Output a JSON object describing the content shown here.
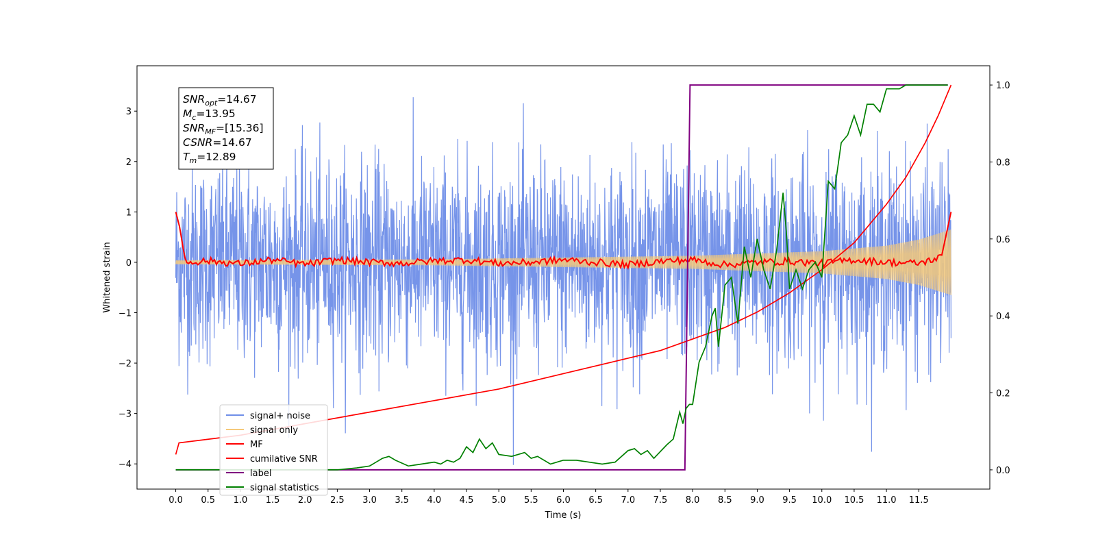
{
  "chart_data": {
    "type": "line",
    "xlabel": "Time (s)",
    "ylabel": "Whitened strain",
    "xlim": [
      -0.6,
      12.6
    ],
    "ylim": [
      -4.5,
      3.9
    ],
    "y2lim": [
      -0.05,
      1.05
    ],
    "x_ticks": [
      0.0,
      0.5,
      1.0,
      1.5,
      2.0,
      2.5,
      3.0,
      3.5,
      4.0,
      4.5,
      5.0,
      5.5,
      6.0,
      6.5,
      7.0,
      7.5,
      8.0,
      8.5,
      9.0,
      9.5,
      10.0,
      10.5,
      11.0,
      11.5
    ],
    "x_tick_labels": [
      "0.0",
      "0.5",
      "1.0",
      "1.5",
      "2.0",
      "2.5",
      "3.0",
      "3.5",
      "4.0",
      "4.5",
      "5.0",
      "5.5",
      "6.0",
      "6.5",
      "7.0",
      "7.5",
      "8.0",
      "8.5",
      "9.0",
      "9.5",
      "10.0",
      "10.5",
      "11.0",
      "11.5"
    ],
    "y_ticks": [
      3,
      2,
      1,
      0,
      -1,
      -2,
      -3,
      -4
    ],
    "y_tick_labels": [
      "3",
      "2",
      "1",
      "0",
      "−1",
      "−2",
      "−3",
      "−4"
    ],
    "y2_ticks": [
      1.0,
      0.8,
      0.6,
      0.4,
      0.2,
      0.0
    ],
    "y2_tick_labels": [
      "1.0",
      "0.8",
      "0.6",
      "0.4",
      "0.2",
      "0.0"
    ],
    "grid": false,
    "legend_position": "lower-left",
    "info_box": {
      "lines": [
        {
          "base": "SNR",
          "sub": "opt",
          "value": "=14.67"
        },
        {
          "base": "M",
          "sub": "c",
          "value": "=13.95"
        },
        {
          "base": "SNR",
          "sub": "MF",
          "value": "=[15.36]"
        },
        {
          "base": "CSNR",
          "sub": "",
          "value": "=14.67"
        },
        {
          "base": "T",
          "sub": "m",
          "value": "=12.89"
        }
      ]
    },
    "series": [
      {
        "name": "signal+ noise",
        "color": "#6f8ee8",
        "axis": "left",
        "kind": "noise",
        "x_range": [
          0,
          12
        ],
        "std": 1.0,
        "min": -4.15,
        "max": 3.55
      },
      {
        "name": "signal only",
        "color": "#f5c97a",
        "axis": "left",
        "kind": "chirp",
        "x_range": [
          0,
          12
        ],
        "amplitude_start": 0.04,
        "amplitude_end": 0.65,
        "envelope": [
          [
            0.0,
            0.04
          ],
          [
            4.0,
            0.06
          ],
          [
            8.0,
            0.13
          ],
          [
            10.0,
            0.22
          ],
          [
            11.0,
            0.33
          ],
          [
            11.5,
            0.45
          ],
          [
            12.0,
            0.65
          ]
        ]
      },
      {
        "name": "MF",
        "color": "#ff0000",
        "axis": "left",
        "x": [
          0.0,
          0.06,
          0.15,
          0.5,
          1.0,
          1.5,
          2.0,
          2.5,
          3.0,
          3.5,
          4.0,
          4.5,
          5.0,
          5.5,
          6.0,
          6.5,
          7.0,
          7.5,
          8.0,
          8.5,
          9.0,
          9.5,
          10.0,
          10.5,
          11.0,
          11.5,
          11.85,
          12.0
        ],
        "y": [
          1.0,
          0.7,
          0.0,
          0.03,
          -0.03,
          0.05,
          -0.04,
          0.05,
          0.0,
          -0.02,
          0.03,
          0.05,
          -0.02,
          0.0,
          0.05,
          0.0,
          -0.05,
          0.02,
          0.05,
          -0.05,
          0.0,
          0.02,
          -0.02,
          0.05,
          0.0,
          -0.02,
          0.1,
          1.0
        ]
      },
      {
        "name": "cumilative SNR",
        "color": "#ff0000",
        "axis": "right",
        "x": [
          0.0,
          0.05,
          1.0,
          2.0,
          3.0,
          4.0,
          5.0,
          6.0,
          7.0,
          7.5,
          8.0,
          8.5,
          9.0,
          9.5,
          10.0,
          10.5,
          11.0,
          11.3,
          11.6,
          11.8,
          12.0
        ],
        "y": [
          0.04,
          0.07,
          0.09,
          0.12,
          0.15,
          0.18,
          0.21,
          0.25,
          0.29,
          0.31,
          0.34,
          0.37,
          0.41,
          0.46,
          0.52,
          0.59,
          0.69,
          0.76,
          0.85,
          0.92,
          1.0
        ]
      },
      {
        "name": "label",
        "color": "#800080",
        "axis": "right",
        "x": [
          0.0,
          7.88,
          7.96,
          11.95
        ],
        "y": [
          0.0,
          0.0,
          1.0,
          1.0
        ]
      },
      {
        "name": "signal statistics",
        "color": "#008000",
        "axis": "right",
        "x": [
          0.0,
          0.5,
          1.0,
          1.5,
          2.0,
          2.5,
          2.8,
          3.0,
          3.1,
          3.2,
          3.3,
          3.4,
          3.6,
          3.8,
          4.0,
          4.1,
          4.2,
          4.3,
          4.4,
          4.5,
          4.6,
          4.7,
          4.8,
          4.9,
          5.0,
          5.2,
          5.4,
          5.5,
          5.6,
          5.8,
          6.0,
          6.2,
          6.4,
          6.6,
          6.8,
          7.0,
          7.1,
          7.2,
          7.3,
          7.4,
          7.6,
          7.7,
          7.8,
          7.85,
          7.9,
          7.95,
          8.0,
          8.1,
          8.2,
          8.3,
          8.35,
          8.4,
          8.5,
          8.6,
          8.7,
          8.8,
          8.9,
          9.0,
          9.1,
          9.2,
          9.3,
          9.4,
          9.45,
          9.5,
          9.6,
          9.7,
          9.8,
          9.9,
          10.0,
          10.1,
          10.2,
          10.3,
          10.4,
          10.5,
          10.6,
          10.7,
          10.8,
          10.9,
          11.0,
          11.1,
          11.2,
          11.3,
          11.4,
          11.5,
          11.6,
          11.7,
          11.8,
          11.95
        ],
        "y": [
          0.0,
          0.0,
          0.0,
          0.0,
          0.0,
          0.0,
          0.005,
          0.01,
          0.02,
          0.03,
          0.035,
          0.025,
          0.01,
          0.015,
          0.02,
          0.015,
          0.025,
          0.02,
          0.03,
          0.06,
          0.045,
          0.08,
          0.055,
          0.07,
          0.04,
          0.035,
          0.045,
          0.03,
          0.035,
          0.015,
          0.025,
          0.025,
          0.02,
          0.015,
          0.02,
          0.05,
          0.055,
          0.04,
          0.05,
          0.03,
          0.065,
          0.08,
          0.15,
          0.12,
          0.16,
          0.17,
          0.17,
          0.28,
          0.32,
          0.4,
          0.42,
          0.32,
          0.48,
          0.5,
          0.38,
          0.58,
          0.5,
          0.6,
          0.52,
          0.47,
          0.57,
          0.72,
          0.62,
          0.47,
          0.52,
          0.47,
          0.52,
          0.54,
          0.5,
          0.75,
          0.73,
          0.85,
          0.87,
          0.92,
          0.87,
          0.95,
          0.95,
          0.93,
          0.99,
          0.99,
          0.99,
          1.0,
          1.0,
          1.0,
          1.0,
          1.0,
          1.0,
          1.0
        ]
      }
    ]
  }
}
